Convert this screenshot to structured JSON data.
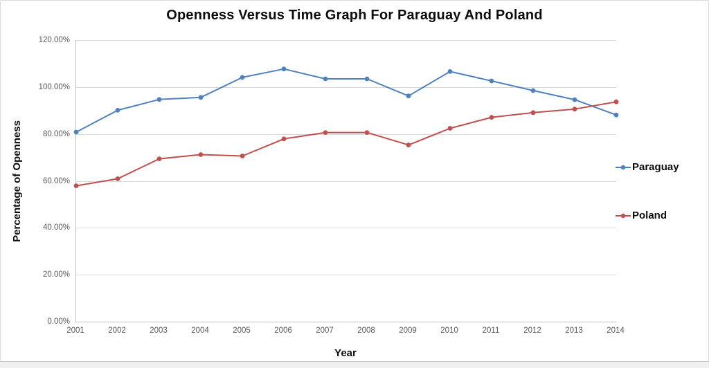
{
  "chart_data": {
    "type": "line",
    "title": "Openness Versus Time Graph For Paraguay And Poland",
    "xlabel": "Year",
    "ylabel": "Percentage of Openness",
    "x": [
      2001,
      2002,
      2003,
      2004,
      2005,
      2006,
      2007,
      2008,
      2009,
      2010,
      2011,
      2012,
      2013,
      2014
    ],
    "series": [
      {
        "name": "Paraguay",
        "color": "#4F81BD",
        "values": [
          80.8,
          90.1,
          94.7,
          95.6,
          104.1,
          107.7,
          103.5,
          103.5,
          96.2,
          106.6,
          102.6,
          98.5,
          94.6,
          88.1
        ]
      },
      {
        "name": "Poland",
        "color": "#C0504D",
        "values": [
          57.9,
          60.9,
          69.4,
          71.2,
          70.6,
          77.9,
          80.6,
          80.6,
          75.3,
          82.4,
          87.1,
          89.1,
          90.6,
          93.7
        ]
      }
    ],
    "ylim": [
      0,
      120
    ],
    "ytick_step": 20,
    "ytick_labels": [
      "0.00%",
      "20.00%",
      "40.00%",
      "60.00%",
      "80.00%",
      "100.00%",
      "120.00%"
    ],
    "grid": true,
    "legend_position": "right",
    "colors": {
      "gridline": "#D9D9D9",
      "axis": "#BFBFBF",
      "tick_text": "#595959",
      "title_text": "#0D0D0D"
    }
  }
}
